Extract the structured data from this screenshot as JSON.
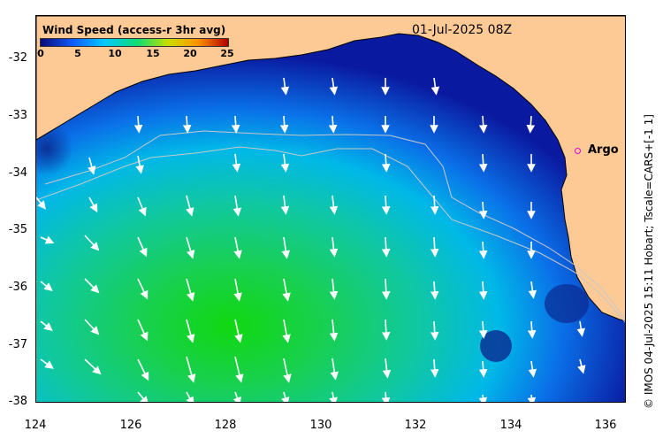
{
  "legend": {
    "title": "Wind Speed (access-r 3hr avg)",
    "ticks": [
      "0",
      "5",
      "10",
      "15",
      "20",
      "25"
    ]
  },
  "timestamp": "01-Jul-2025 08Z",
  "argo_label": "Argo",
  "credit": "© IMOS 04-Jul-2025 15:11 Hobart; Tscale=CARS+[-1 1]",
  "axes": {
    "x_ticks": [
      "124",
      "126",
      "128",
      "130",
      "132",
      "134",
      "136"
    ],
    "y_ticks": [
      "-32",
      "-33",
      "-34",
      "-35",
      "-36",
      "-37",
      "-38"
    ]
  },
  "colors": {
    "land": "#fdca95",
    "low_wind": "#0a1aa0",
    "high_wind": "#10d810",
    "arrow": "#ffffff",
    "argo": "#e000e0"
  },
  "chart_data": {
    "type": "heatmap",
    "title": "Wind Speed (access-r 3hr avg)",
    "xlim": [
      124,
      136.8
    ],
    "ylim": [
      -38.1,
      -31.4
    ],
    "colorbar_range": [
      0,
      25
    ],
    "argo_position": {
      "lon": 135.5,
      "lat": -33.6
    }
  }
}
